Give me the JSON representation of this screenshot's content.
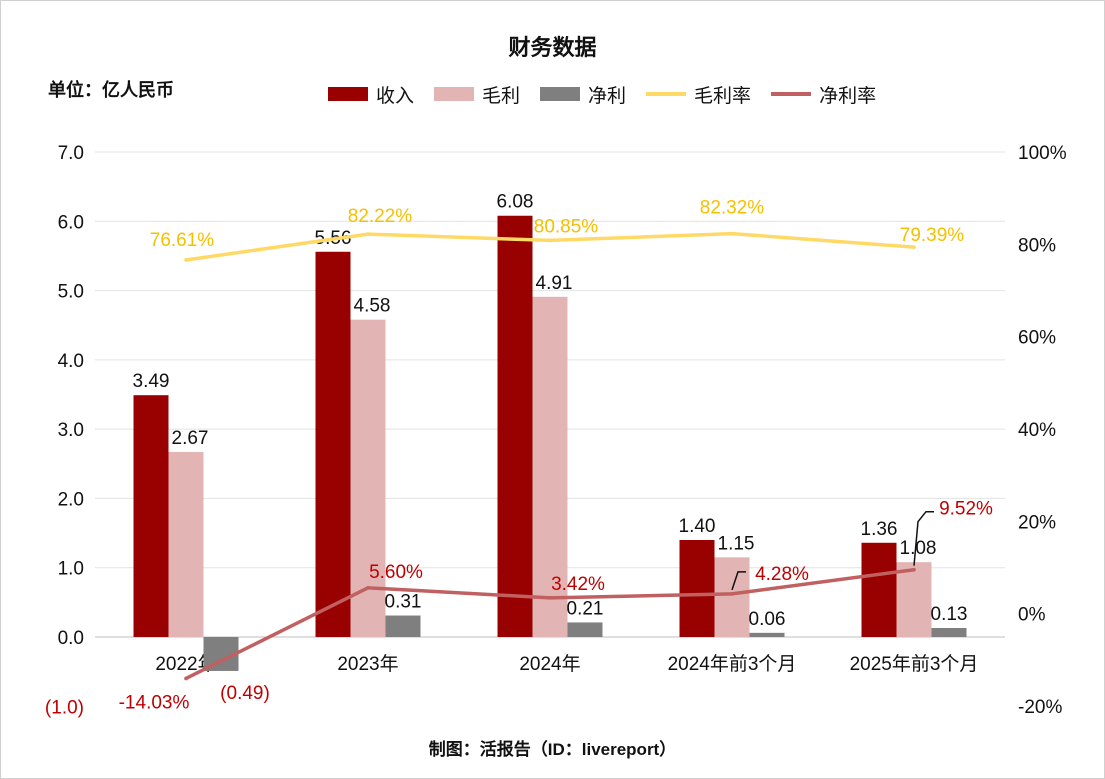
{
  "title": "财务数据",
  "unit_label": "单位：亿人民币",
  "credit": "制图：活报告（ID：livereport）",
  "colors": {
    "revenue": "#990000",
    "gross_profit": "#e2b4b4",
    "net_profit": "#7f7f7f",
    "gross_margin": "#ffd966",
    "net_margin": "#c06060",
    "gross_margin_label": "#f5c000",
    "net_margin_label": "#c00000",
    "negative_tick": "#c00000"
  },
  "chart_data": {
    "type": "bar",
    "title": "财务数据",
    "categories": [
      "2022年",
      "2023年",
      "2024年",
      "2024年前3个月",
      "2025年前3个月"
    ],
    "series": [
      {
        "name": "收入",
        "type": "bar",
        "axis": "left",
        "values": [
          3.49,
          5.56,
          6.08,
          1.4,
          1.36
        ],
        "labels": [
          "3.49",
          "5.56",
          "6.08",
          "1.40",
          "1.36"
        ]
      },
      {
        "name": "毛利",
        "type": "bar",
        "axis": "left",
        "values": [
          2.67,
          4.58,
          4.91,
          1.15,
          1.08
        ],
        "labels": [
          "2.67",
          "4.58",
          "4.91",
          "1.15",
          "1.08"
        ]
      },
      {
        "name": "净利",
        "type": "bar",
        "axis": "left",
        "values": [
          -0.49,
          0.31,
          0.21,
          0.06,
          0.13
        ],
        "labels": [
          "(0.49)",
          "0.31",
          "0.21",
          "0.06",
          "0.13"
        ]
      },
      {
        "name": "毛利率",
        "type": "line",
        "axis": "right",
        "values": [
          76.61,
          82.22,
          80.85,
          82.32,
          79.39
        ],
        "labels": [
          "76.61%",
          "82.22%",
          "80.85%",
          "82.32%",
          "79.39%"
        ]
      },
      {
        "name": "净利率",
        "type": "line",
        "axis": "right",
        "values": [
          -14.03,
          5.6,
          3.42,
          4.28,
          9.52
        ],
        "labels": [
          "-14.03%",
          "5.60%",
          "3.42%",
          "4.28%",
          "9.52%"
        ]
      }
    ],
    "y_left": {
      "min": -1.0,
      "max": 7.0,
      "ticks": [
        "(1.0)",
        "0.0",
        "1.0",
        "2.0",
        "3.0",
        "4.0",
        "5.0",
        "6.0",
        "7.0"
      ]
    },
    "y_right": {
      "min": -20,
      "max": 100,
      "ticks": [
        "-20%",
        "0%",
        "20%",
        "40%",
        "60%",
        "80%",
        "100%"
      ]
    },
    "grid": true,
    "legend_position": "top"
  }
}
